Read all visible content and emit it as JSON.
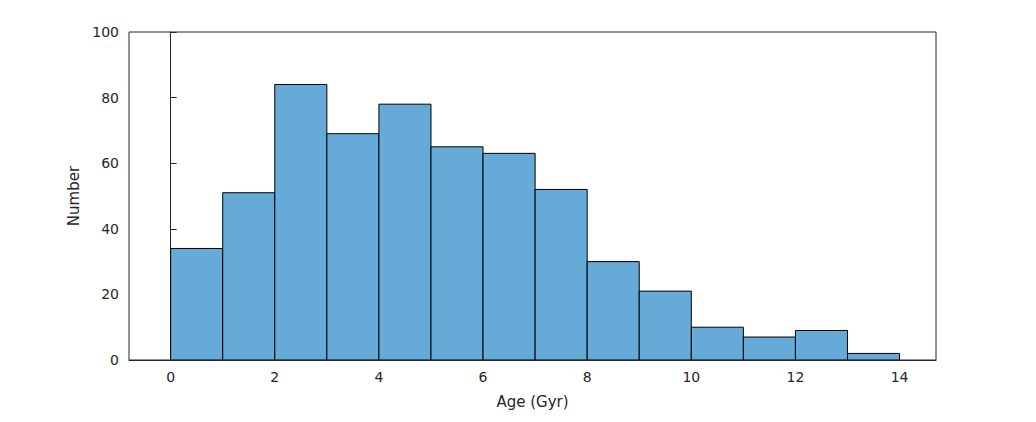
{
  "chart_data": {
    "type": "histogram",
    "xlabel": "Age (Gyr)",
    "ylabel": "Number",
    "bins": [
      0,
      1,
      2,
      3,
      4,
      5,
      6,
      7,
      8,
      9,
      10,
      11,
      12,
      13,
      14
    ],
    "counts": [
      34,
      51,
      84,
      69,
      78,
      65,
      63,
      52,
      30,
      21,
      10,
      7,
      9,
      2
    ],
    "color": "#66aad8",
    "xlim": [
      -0.8,
      14.7
    ],
    "xticks": [
      0,
      2,
      4,
      6,
      8,
      10,
      12,
      14
    ],
    "ylim": [
      0,
      100
    ],
    "yticks": [
      0,
      20,
      40,
      60,
      80,
      100
    ],
    "grid": false
  }
}
